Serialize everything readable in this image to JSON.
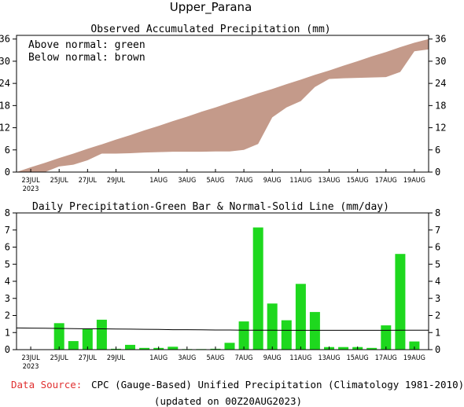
{
  "region_title": "Upper_Parana",
  "top_title": "Observed Accumulated Precipitation (mm)",
  "legend_line1": "Above normal: green",
  "legend_line2": "Below normal: brown",
  "bottom_title": "Daily Precipitation-Green Bar & Normal-Solid Line (mm/day)",
  "source_label": "Data Source:",
  "source_text": "CPC (Gauge-Based) Unified Precipitation (Climatology 1981-2010)",
  "updated_text": "(updated on 00Z20AUG2023)",
  "colors": {
    "above": "#00cc00",
    "below": "#c49a8a",
    "bar": "#1ed81e",
    "source_label": "#e03030"
  },
  "chart_data": [
    {
      "type": "area",
      "title": "Observed Accumulated Precipitation (mm)",
      "x_tick_labels": [
        "23JUL",
        "25JUL",
        "27JUL",
        "29JUL",
        "1AUG",
        "3AUG",
        "5AUG",
        "7AUG",
        "9AUG",
        "11AUG",
        "13AUG",
        "15AUG",
        "17AUG",
        "19AUG"
      ],
      "x_tick_days": [
        2,
        4,
        6,
        8,
        11,
        13,
        15,
        17,
        19,
        21,
        23,
        25,
        27,
        29
      ],
      "year_label": "2023",
      "ylim": [
        0,
        37
      ],
      "yticks": [
        0,
        6,
        12,
        18,
        24,
        30,
        36
      ],
      "days": [
        1,
        2,
        3,
        4,
        5,
        6,
        7,
        8,
        9,
        10,
        11,
        12,
        13,
        14,
        15,
        16,
        17,
        18,
        19,
        20,
        21,
        22,
        23,
        24,
        25,
        26,
        27,
        28,
        29,
        30
      ],
      "observed": [
        0,
        0,
        0,
        1.5,
        2.0,
        3.2,
        5.0,
        5.0,
        5.1,
        5.3,
        5.4,
        5.5,
        5.5,
        5.5,
        5.6,
        5.6,
        6.0,
        7.6,
        14.8,
        17.5,
        19.2,
        23.0,
        25.2,
        25.4,
        25.5,
        25.6,
        25.7,
        27.1,
        32.7,
        33.2
      ],
      "normal": [
        0,
        1.3,
        2.5,
        3.8,
        5.0,
        6.3,
        7.5,
        8.8,
        10.0,
        11.3,
        12.5,
        13.8,
        15.0,
        16.3,
        17.5,
        18.8,
        20.0,
        21.3,
        22.5,
        23.8,
        25.0,
        26.3,
        27.5,
        28.8,
        30.0,
        31.3,
        32.5,
        33.8,
        35.0,
        36.0
      ],
      "legend": [
        "Above normal: green",
        "Below normal: brown"
      ]
    },
    {
      "type": "bar",
      "title": "Daily Precipitation-Green Bar & Normal-Solid Line (mm/day)",
      "x_tick_labels": [
        "23JUL",
        "25JUL",
        "27JUL",
        "29JUL",
        "1AUG",
        "3AUG",
        "5AUG",
        "7AUG",
        "9AUG",
        "11AUG",
        "13AUG",
        "15AUG",
        "17AUG",
        "19AUG"
      ],
      "x_tick_days": [
        2,
        4,
        6,
        8,
        11,
        13,
        15,
        17,
        19,
        21,
        23,
        25,
        27,
        29
      ],
      "year_label": "2023",
      "ylim": [
        0,
        8
      ],
      "yticks": [
        0,
        1,
        2,
        3,
        4,
        5,
        6,
        7,
        8
      ],
      "days": [
        1,
        2,
        3,
        4,
        5,
        6,
        7,
        8,
        9,
        10,
        11,
        12,
        13,
        14,
        15,
        16,
        17,
        18,
        19,
        20,
        21,
        22,
        23,
        24,
        25,
        26,
        27,
        28,
        29,
        30
      ],
      "daily": [
        0,
        0,
        0,
        1.55,
        0.5,
        1.2,
        1.75,
        0.05,
        0.28,
        0.1,
        0.1,
        0.17,
        0.03,
        0.03,
        0.05,
        0.4,
        1.65,
        7.15,
        2.7,
        1.72,
        3.85,
        2.2,
        0.15,
        0.15,
        0.15,
        0.1,
        1.42,
        5.6,
        0.48,
        0
      ],
      "normal_line": [
        1.27,
        1.26,
        1.25,
        1.24,
        1.23,
        1.22,
        1.22,
        1.21,
        1.2,
        1.19,
        1.18,
        1.17,
        1.17,
        1.16,
        1.15,
        1.15,
        1.14,
        1.14,
        1.14,
        1.13,
        1.13,
        1.13,
        1.13,
        1.13,
        1.13,
        1.13,
        1.13,
        1.14,
        1.14,
        1.14
      ]
    }
  ]
}
